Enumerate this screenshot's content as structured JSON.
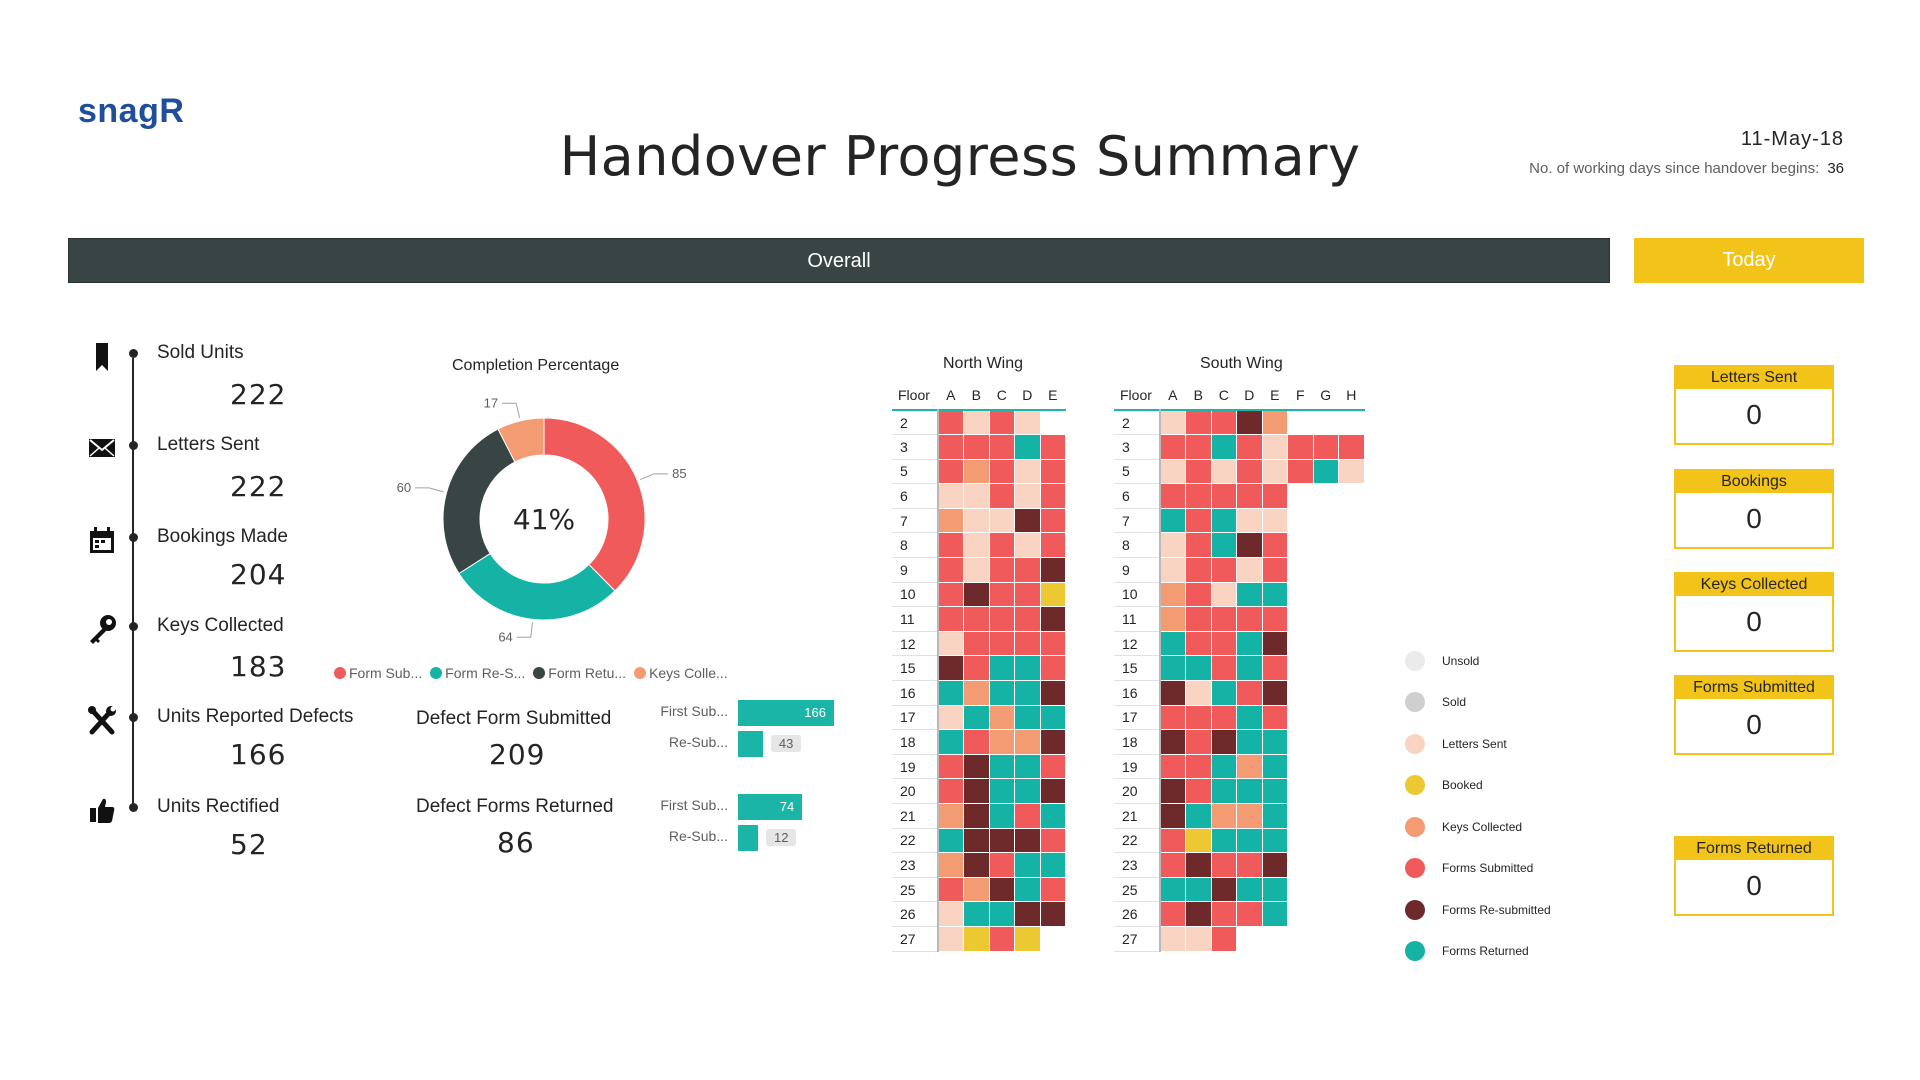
{
  "header": {
    "logo": "snagR",
    "title": "Handover Progress Summary",
    "date": "11-May-18",
    "working_days_label": "No. of working days since handover begins:",
    "working_days_value": "36"
  },
  "tabs": {
    "overall": "Overall",
    "today": "Today"
  },
  "timeline": [
    {
      "icon": "bookmark-icon",
      "label": "Sold Units",
      "value": "222"
    },
    {
      "icon": "envelope-icon",
      "label": "Letters Sent",
      "value": "222"
    },
    {
      "icon": "calendar-icon",
      "label": "Bookings Made",
      "value": "204"
    },
    {
      "icon": "key-icon",
      "label": "Keys Collected",
      "value": "183"
    },
    {
      "icon": "tools-icon",
      "label": "Units Reported Defects",
      "value": "166"
    },
    {
      "icon": "thumbs-up-icon",
      "label": "Units Rectified",
      "value": "52"
    }
  ],
  "completion": {
    "title": "Completion Percentage",
    "center": "41%",
    "legend": [
      "Form Sub...",
      "Form Re-S...",
      "Form Retu...",
      "Keys Colle..."
    ]
  },
  "defects": {
    "submitted_label": "Defect Form Submitted",
    "submitted_value": "209",
    "returned_label": "Defect Forms Returned",
    "returned_value": "86",
    "bars_submitted": [
      {
        "label": "First Sub...",
        "value": 166
      },
      {
        "label": "Re-Sub...",
        "value": 43
      }
    ],
    "bars_returned": [
      {
        "label": "First Sub...",
        "value": 74
      },
      {
        "label": "Re-Sub...",
        "value": 12
      }
    ]
  },
  "colors": {
    "unsold": "#ebebeb",
    "sold": "#cfcfcf",
    "letters": "#f9d4c2",
    "booked": "#ecc832",
    "keys": "#f39b73",
    "submitted": "#f15a5a",
    "resubmitted": "#6e2a2a",
    "returned": "#14b3a6",
    "blank": "#ffffff"
  },
  "chart_data": [
    {
      "type": "pie",
      "title": "Completion Percentage",
      "categories": [
        "Form Sub...",
        "Form Re-S...",
        "Form Retu...",
        "Keys Colle..."
      ],
      "values": [
        85,
        64,
        60,
        17
      ],
      "center_label": "41%"
    },
    {
      "type": "bar",
      "orientation": "horizontal",
      "title": "Defect Form Submitted",
      "categories": [
        "First Sub...",
        "Re-Sub..."
      ],
      "values": [
        166,
        43
      ]
    },
    {
      "type": "bar",
      "orientation": "horizontal",
      "title": "Defect Forms Returned",
      "categories": [
        "First Sub...",
        "Re-Sub..."
      ],
      "values": [
        74,
        12
      ]
    },
    {
      "type": "heatmap",
      "title": "North Wing",
      "x_label": "Floor",
      "columns": [
        "A",
        "B",
        "C",
        "D",
        "E"
      ],
      "rows": [
        "2",
        "3",
        "5",
        "6",
        "7",
        "8",
        "9",
        "10",
        "11",
        "12",
        "15",
        "16",
        "17",
        "18",
        "19",
        "20",
        "21",
        "22",
        "23",
        "25",
        "26",
        "27"
      ],
      "cells": [
        [
          "submitted",
          "letters",
          "submitted",
          "letters",
          "blank"
        ],
        [
          "submitted",
          "submitted",
          "submitted",
          "returned",
          "submitted"
        ],
        [
          "submitted",
          "keys",
          "submitted",
          "letters",
          "submitted"
        ],
        [
          "letters",
          "letters",
          "submitted",
          "letters",
          "submitted"
        ],
        [
          "keys",
          "letters",
          "letters",
          "resubmitted",
          "submitted"
        ],
        [
          "submitted",
          "letters",
          "submitted",
          "letters",
          "submitted"
        ],
        [
          "submitted",
          "letters",
          "submitted",
          "submitted",
          "resubmitted"
        ],
        [
          "submitted",
          "resubmitted",
          "submitted",
          "submitted",
          "booked"
        ],
        [
          "submitted",
          "submitted",
          "submitted",
          "submitted",
          "resubmitted"
        ],
        [
          "letters",
          "submitted",
          "submitted",
          "submitted",
          "submitted"
        ],
        [
          "resubmitted",
          "submitted",
          "returned",
          "returned",
          "submitted"
        ],
        [
          "returned",
          "keys",
          "returned",
          "returned",
          "resubmitted"
        ],
        [
          "letters",
          "returned",
          "keys",
          "returned",
          "returned"
        ],
        [
          "returned",
          "submitted",
          "keys",
          "keys",
          "resubmitted"
        ],
        [
          "submitted",
          "resubmitted",
          "returned",
          "returned",
          "submitted"
        ],
        [
          "submitted",
          "resubmitted",
          "returned",
          "returned",
          "resubmitted"
        ],
        [
          "keys",
          "resubmitted",
          "returned",
          "submitted",
          "returned"
        ],
        [
          "returned",
          "resubmitted",
          "resubmitted",
          "resubmitted",
          "submitted"
        ],
        [
          "keys",
          "resubmitted",
          "submitted",
          "returned",
          "returned"
        ],
        [
          "submitted",
          "keys",
          "resubmitted",
          "returned",
          "submitted"
        ],
        [
          "letters",
          "returned",
          "returned",
          "resubmitted",
          "resubmitted"
        ],
        [
          "letters",
          "booked",
          "submitted",
          "booked",
          "blank"
        ]
      ]
    },
    {
      "type": "heatmap",
      "title": "South Wing",
      "x_label": "Floor",
      "columns": [
        "A",
        "B",
        "C",
        "D",
        "E",
        "F",
        "G",
        "H"
      ],
      "rows": [
        "2",
        "3",
        "5",
        "6",
        "7",
        "8",
        "9",
        "10",
        "11",
        "12",
        "15",
        "16",
        "17",
        "18",
        "19",
        "20",
        "21",
        "22",
        "23",
        "25",
        "26",
        "27"
      ],
      "cells": [
        [
          "letters",
          "submitted",
          "submitted",
          "resubmitted",
          "keys",
          "blank",
          "blank",
          "blank"
        ],
        [
          "submitted",
          "submitted",
          "returned",
          "submitted",
          "letters",
          "submitted",
          "submitted",
          "submitted"
        ],
        [
          "letters",
          "submitted",
          "letters",
          "submitted",
          "letters",
          "submitted",
          "returned",
          "letters"
        ],
        [
          "submitted",
          "submitted",
          "submitted",
          "submitted",
          "submitted",
          "blank",
          "blank",
          "blank"
        ],
        [
          "returned",
          "submitted",
          "returned",
          "letters",
          "letters",
          "blank",
          "blank",
          "blank"
        ],
        [
          "letters",
          "submitted",
          "returned",
          "resubmitted",
          "submitted",
          "blank",
          "blank",
          "blank"
        ],
        [
          "letters",
          "submitted",
          "submitted",
          "letters",
          "submitted",
          "blank",
          "blank",
          "blank"
        ],
        [
          "keys",
          "submitted",
          "letters",
          "returned",
          "returned",
          "blank",
          "blank",
          "blank"
        ],
        [
          "keys",
          "submitted",
          "submitted",
          "submitted",
          "submitted",
          "blank",
          "blank",
          "blank"
        ],
        [
          "returned",
          "submitted",
          "submitted",
          "returned",
          "resubmitted",
          "blank",
          "blank",
          "blank"
        ],
        [
          "returned",
          "returned",
          "submitted",
          "returned",
          "submitted",
          "blank",
          "blank",
          "blank"
        ],
        [
          "resubmitted",
          "letters",
          "returned",
          "submitted",
          "resubmitted",
          "blank",
          "blank",
          "blank"
        ],
        [
          "submitted",
          "submitted",
          "submitted",
          "returned",
          "submitted",
          "blank",
          "blank",
          "blank"
        ],
        [
          "resubmitted",
          "submitted",
          "resubmitted",
          "returned",
          "returned",
          "blank",
          "blank",
          "blank"
        ],
        [
          "submitted",
          "submitted",
          "returned",
          "keys",
          "returned",
          "blank",
          "blank",
          "blank"
        ],
        [
          "resubmitted",
          "submitted",
          "returned",
          "returned",
          "returned",
          "blank",
          "blank",
          "blank"
        ],
        [
          "resubmitted",
          "returned",
          "keys",
          "keys",
          "returned",
          "blank",
          "blank",
          "blank"
        ],
        [
          "submitted",
          "booked",
          "returned",
          "returned",
          "returned",
          "blank",
          "blank",
          "blank"
        ],
        [
          "submitted",
          "resubmitted",
          "submitted",
          "submitted",
          "resubmitted",
          "blank",
          "blank",
          "blank"
        ],
        [
          "returned",
          "returned",
          "resubmitted",
          "returned",
          "returned",
          "blank",
          "blank",
          "blank"
        ],
        [
          "submitted",
          "resubmitted",
          "submitted",
          "submitted",
          "returned",
          "blank",
          "blank",
          "blank"
        ],
        [
          "letters",
          "letters",
          "submitted",
          "blank",
          "blank",
          "blank",
          "blank",
          "blank"
        ]
      ]
    }
  ],
  "status_legend": [
    {
      "key": "unsold",
      "label": "Unsold"
    },
    {
      "key": "sold",
      "label": "Sold"
    },
    {
      "key": "letters",
      "label": "Letters Sent"
    },
    {
      "key": "booked",
      "label": "Booked"
    },
    {
      "key": "keys",
      "label": "Keys Collected"
    },
    {
      "key": "submitted",
      "label": "Forms Submitted"
    },
    {
      "key": "resubmitted",
      "label": "Forms Re-submitted"
    },
    {
      "key": "returned",
      "label": "Forms Returned"
    }
  ],
  "today_cards": [
    {
      "label": "Letters Sent",
      "value": "0"
    },
    {
      "label": "Bookings",
      "value": "0"
    },
    {
      "label": "Keys Collected",
      "value": "0"
    },
    {
      "label": "Forms Submitted",
      "value": "0"
    },
    {
      "label": "Forms Returned",
      "value": "0"
    }
  ]
}
